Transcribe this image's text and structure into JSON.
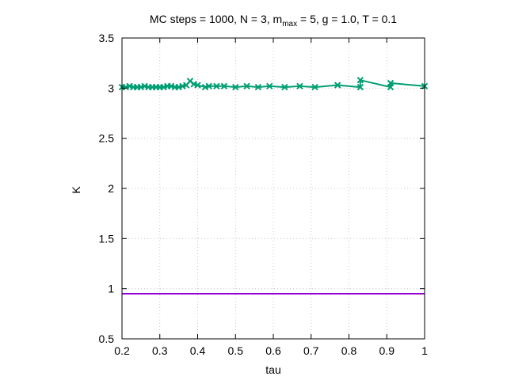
{
  "chart_data": {
    "type": "line",
    "title": {
      "prefix": "MC steps = 1000, N = 3, m",
      "subscript": "max",
      "suffix": " = 5, g = 1.0, T = 0.1"
    },
    "xlabel": "tau",
    "ylabel": "K",
    "xlim": [
      0.2,
      1.0
    ],
    "ylim": [
      0.5,
      3.5
    ],
    "xticks": [
      "0.2",
      "0.3",
      "0.4",
      "0.5",
      "0.6",
      "0.7",
      "0.8",
      "0.9",
      "1"
    ],
    "yticks": [
      "0.5",
      "1",
      "1.5",
      "2",
      "2.5",
      "3",
      "3.5"
    ],
    "grid": true,
    "legend": false,
    "series": [
      {
        "color": "#009e73",
        "marker": "x",
        "x": [
          0.2,
          0.21,
          0.22,
          0.23,
          0.24,
          0.25,
          0.26,
          0.27,
          0.28,
          0.29,
          0.3,
          0.31,
          0.32,
          0.33,
          0.34,
          0.35,
          0.36,
          0.37,
          0.38,
          0.39,
          0.4,
          0.42,
          0.43,
          0.45,
          0.47,
          0.5,
          0.53,
          0.56,
          0.59,
          0.63,
          0.67,
          0.71,
          0.77,
          0.83,
          0.83,
          0.91,
          0.91,
          1.0
        ],
        "y": [
          3.01,
          3.01,
          3.02,
          3.01,
          3.01,
          3.01,
          3.02,
          3.01,
          3.01,
          3.01,
          3.01,
          3.01,
          3.02,
          3.02,
          3.01,
          3.01,
          3.02,
          3.03,
          3.07,
          3.04,
          3.03,
          3.01,
          3.02,
          3.02,
          3.02,
          3.01,
          3.02,
          3.01,
          3.02,
          3.01,
          3.02,
          3.01,
          3.03,
          3.01,
          3.08,
          3.01,
          3.05,
          3.02
        ]
      },
      {
        "color": "#9400d3",
        "marker": "none",
        "x": [
          0.2,
          1.0
        ],
        "y": [
          0.95,
          0.95
        ]
      }
    ]
  }
}
